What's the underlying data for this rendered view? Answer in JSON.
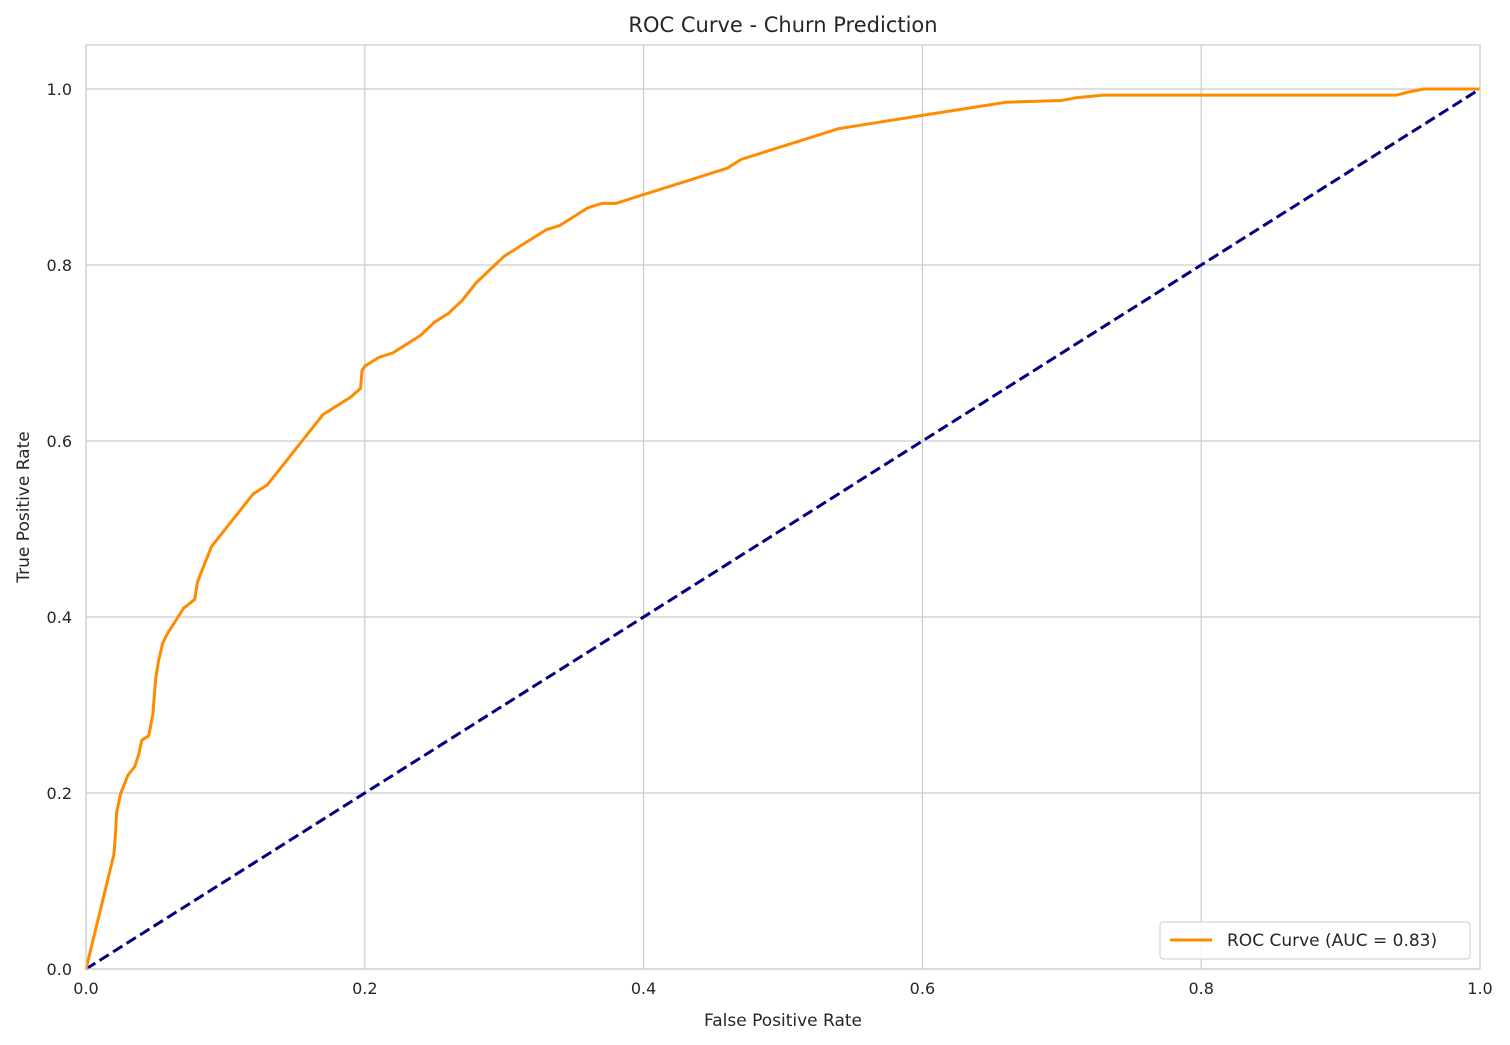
{
  "chart_data": {
    "type": "line",
    "title": "ROC Curve - Churn Prediction",
    "xlabel": "False Positive Rate",
    "ylabel": "True Positive Rate",
    "xlim": [
      0.0,
      1.0
    ],
    "ylim": [
      0.0,
      1.05
    ],
    "xticks": [
      "0.0",
      "0.2",
      "0.4",
      "0.6",
      "0.8",
      "1.0"
    ],
    "yticks": [
      "0.0",
      "0.2",
      "0.4",
      "0.6",
      "0.8",
      "1.0"
    ],
    "grid": true,
    "legend_position": "lower-right",
    "series": [
      {
        "name": "ROC Curve (AUC = 0.83)",
        "color": "#ff8c00",
        "style": "solid",
        "x": [
          0.0,
          0.02,
          0.021,
          0.022,
          0.025,
          0.03,
          0.035,
          0.038,
          0.04,
          0.045,
          0.048,
          0.05,
          0.052,
          0.055,
          0.058,
          0.062,
          0.066,
          0.07,
          0.078,
          0.08,
          0.085,
          0.09,
          0.095,
          0.1,
          0.105,
          0.11,
          0.115,
          0.12,
          0.13,
          0.135,
          0.14,
          0.145,
          0.15,
          0.155,
          0.16,
          0.165,
          0.17,
          0.18,
          0.19,
          0.197,
          0.198,
          0.2,
          0.21,
          0.22,
          0.23,
          0.24,
          0.25,
          0.26,
          0.27,
          0.28,
          0.29,
          0.3,
          0.31,
          0.32,
          0.33,
          0.34,
          0.35,
          0.36,
          0.37,
          0.38,
          0.39,
          0.4,
          0.41,
          0.42,
          0.43,
          0.44,
          0.45,
          0.46,
          0.47,
          0.48,
          0.49,
          0.5,
          0.52,
          0.54,
          0.56,
          0.58,
          0.6,
          0.62,
          0.64,
          0.66,
          0.7,
          0.71,
          0.73,
          0.8,
          0.9,
          0.94,
          0.95,
          0.96,
          1.0
        ],
        "y": [
          0.0,
          0.13,
          0.15,
          0.178,
          0.2,
          0.22,
          0.23,
          0.245,
          0.26,
          0.265,
          0.29,
          0.33,
          0.35,
          0.37,
          0.38,
          0.39,
          0.4,
          0.41,
          0.42,
          0.44,
          0.46,
          0.48,
          0.49,
          0.5,
          0.51,
          0.52,
          0.53,
          0.54,
          0.55,
          0.56,
          0.57,
          0.58,
          0.59,
          0.6,
          0.61,
          0.62,
          0.63,
          0.64,
          0.65,
          0.66,
          0.68,
          0.685,
          0.695,
          0.7,
          0.71,
          0.72,
          0.735,
          0.745,
          0.76,
          0.78,
          0.795,
          0.81,
          0.82,
          0.83,
          0.84,
          0.845,
          0.855,
          0.865,
          0.87,
          0.87,
          0.875,
          0.88,
          0.885,
          0.89,
          0.895,
          0.9,
          0.905,
          0.91,
          0.92,
          0.925,
          0.93,
          0.935,
          0.945,
          0.955,
          0.96,
          0.965,
          0.97,
          0.975,
          0.98,
          0.985,
          0.987,
          0.99,
          0.993,
          0.993,
          0.993,
          0.993,
          0.997,
          1.0,
          1.0
        ]
      },
      {
        "name": "",
        "color": "#000080",
        "style": "dashed",
        "x": [
          0.0,
          1.0
        ],
        "y": [
          0.0,
          1.0
        ]
      }
    ]
  }
}
